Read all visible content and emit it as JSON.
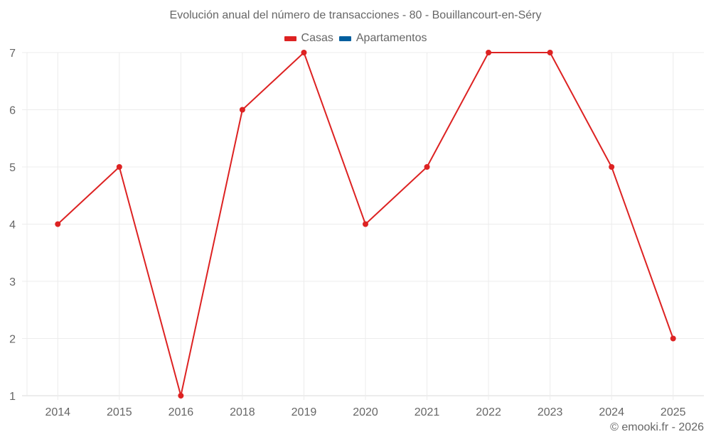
{
  "title": "Evolución anual del número de transacciones - 80 - Bouillancourt-en-Séry",
  "legend": [
    {
      "label": "Casas",
      "color": "#dd2222"
    },
    {
      "label": "Apartamentos",
      "color": "#005e9e"
    }
  ],
  "credit": "© emooki.fr - 2026",
  "chart_data": {
    "type": "line",
    "title": "Evolución anual del número de transacciones - 80 - Bouillancourt-en-Séry",
    "xlabel": "",
    "ylabel": "",
    "categories": [
      "2014",
      "2015",
      "2016",
      "2018",
      "2019",
      "2020",
      "2021",
      "2022",
      "2023",
      "2024",
      "2025"
    ],
    "series": [
      {
        "name": "Casas",
        "color": "#dd2222",
        "values": [
          4,
          5,
          1,
          6,
          7,
          4,
          5,
          7,
          7,
          5,
          2
        ]
      },
      {
        "name": "Apartamentos",
        "color": "#005e9e",
        "values": []
      }
    ],
    "yticks": [
      1,
      2,
      3,
      4,
      5,
      6,
      7
    ],
    "ylim": [
      1,
      7
    ],
    "grid": true,
    "legend_position": "top"
  }
}
